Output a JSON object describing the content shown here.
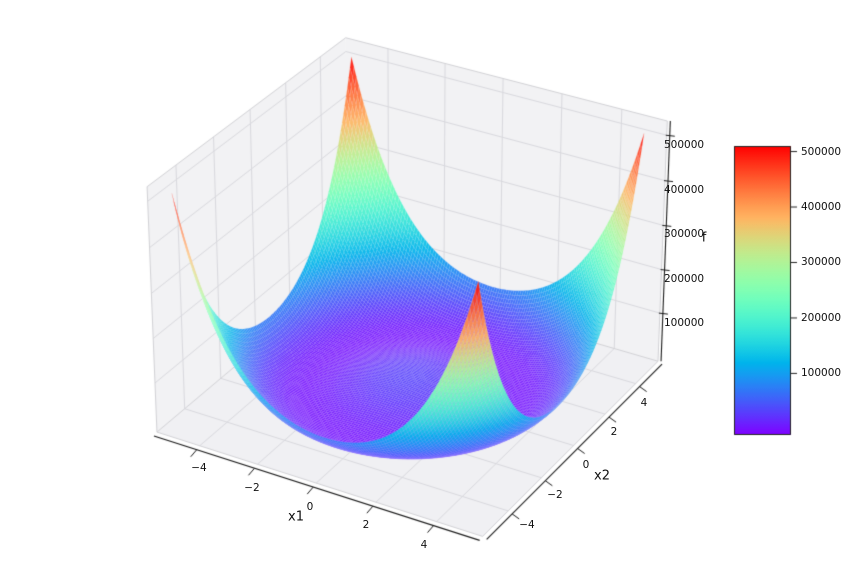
{
  "chart_data": {
    "type": "surface3d",
    "title": "",
    "x1_axis": {
      "label": "x1",
      "tick_labels": [
        "−4",
        "−2",
        "0",
        "2",
        "4"
      ],
      "range": [
        -5,
        5
      ]
    },
    "x2_axis": {
      "label": "x2",
      "tick_labels": [
        "−4",
        "−2",
        "0",
        "2",
        "4"
      ],
      "range": [
        -5,
        5
      ]
    },
    "z_axis": {
      "label": "f",
      "tick_labels": [
        "100000",
        "200000",
        "300000",
        "400000",
        "500000"
      ],
      "tick_values": [
        100000,
        200000,
        300000,
        400000,
        500000
      ],
      "range": [
        0,
        510400
      ]
    },
    "surface": {
      "formula": "f(x1,x2) = 319*(x1^2 + x2^2 - 10)^2",
      "s": 319,
      "r2": 10,
      "grid_n": 120,
      "x_range": [
        -5,
        5
      ],
      "y_range": [
        -5,
        5
      ],
      "z_min": 0,
      "z_max": 510400
    },
    "colormap": {
      "name": "rainbow"
    },
    "colorbar": {
      "tick_labels": [
        "100000",
        "200000",
        "300000",
        "400000",
        "500000"
      ],
      "tick_values": [
        100000,
        200000,
        300000,
        400000,
        500000
      ],
      "vmin": -11000,
      "vmax": 510000
    },
    "view": {
      "elev": 30,
      "azim": -60,
      "projection": "perspective"
    },
    "pane_color": "#f2f2f4",
    "grid_color": "#d9d9de",
    "spine_color": "#1a1a1a"
  }
}
